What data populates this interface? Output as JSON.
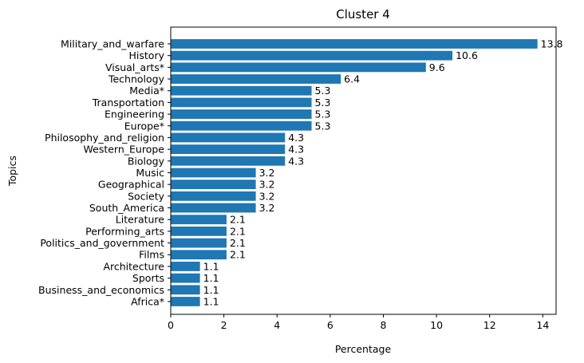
{
  "chart_data": {
    "type": "bar",
    "orientation": "horizontal",
    "title": "Cluster 4",
    "xlabel": "Percentage",
    "ylabel": "Topics",
    "xlim": [
      0,
      14.5
    ],
    "xticks": [
      0,
      2,
      4,
      6,
      8,
      10,
      12,
      14
    ],
    "grid": false,
    "legend": "none",
    "bar_color": "#1f77b4",
    "categories": [
      "Military_and_warfare",
      "History",
      "Visual_arts*",
      "Technology",
      "Media*",
      "Transportation",
      "Engineering",
      "Europe*",
      "Philosophy_and_religion",
      "Western_Europe",
      "Biology",
      "Music",
      "Geographical",
      "Society",
      "South_America",
      "Literature",
      "Performing_arts",
      "Politics_and_government",
      "Films",
      "Architecture",
      "Sports",
      "Business_and_economics",
      "Africa*"
    ],
    "values": [
      13.8,
      10.6,
      9.6,
      6.4,
      5.3,
      5.3,
      5.3,
      5.3,
      4.3,
      4.3,
      4.3,
      3.2,
      3.2,
      3.2,
      3.2,
      2.1,
      2.1,
      2.1,
      2.1,
      1.1,
      1.1,
      1.1,
      1.1
    ]
  }
}
